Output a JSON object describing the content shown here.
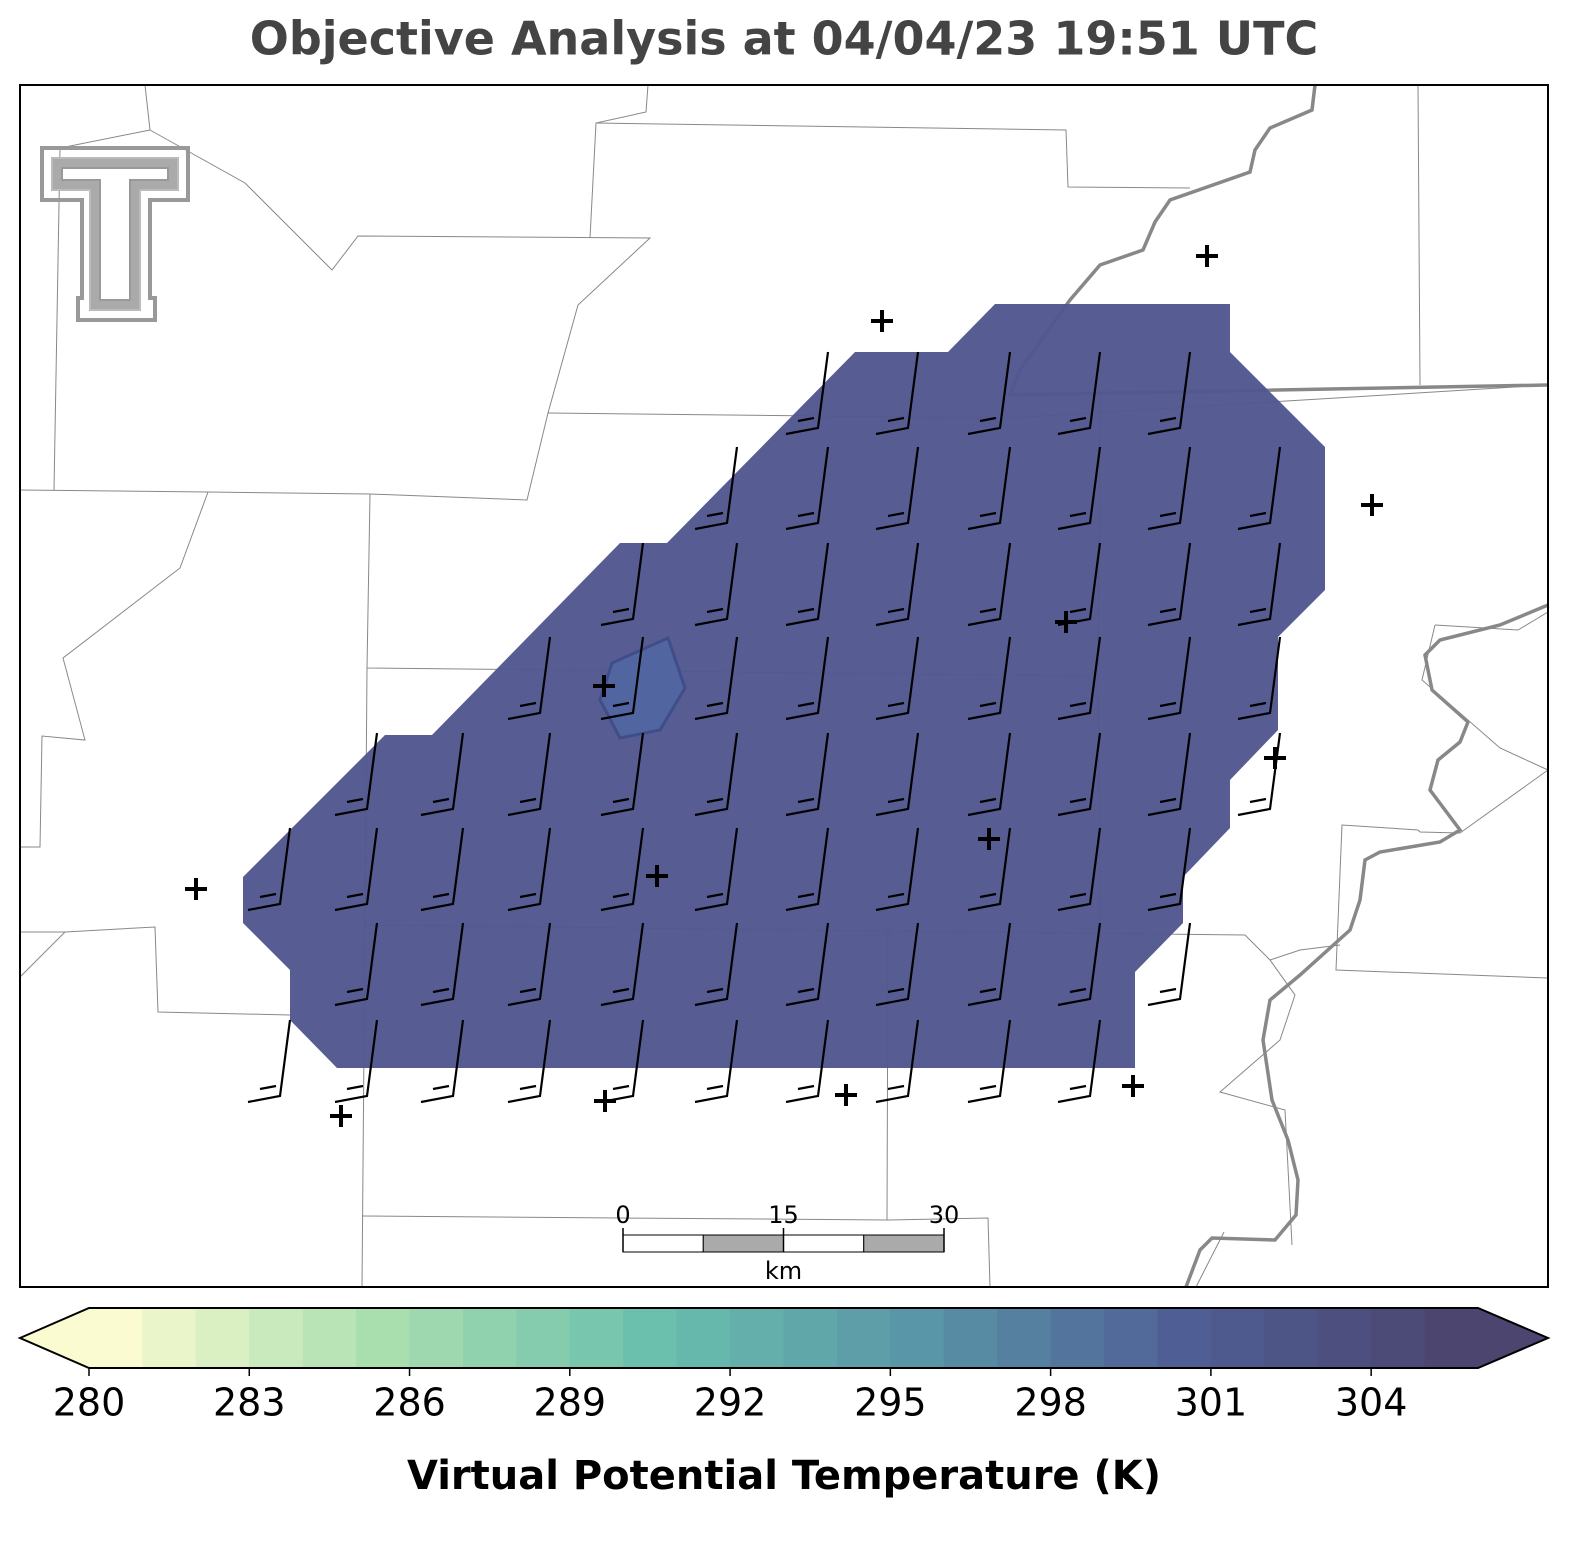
{
  "title": "Objective Analysis at 04/04/23 19:51 UTC",
  "colorbar": {
    "label": "Virtual Potential Temperature (K)",
    "lim": [
      280,
      306
    ],
    "step": 1,
    "ticks": [
      280,
      283,
      286,
      289,
      292,
      295,
      298,
      301,
      304
    ],
    "colors": [
      "#fafbd0",
      "#a9deae",
      "#6bc0ad",
      "#5996a8",
      "#4f5f95",
      "#4b4570"
    ]
  },
  "field": {
    "color": "#52588f"
  },
  "scale_bar": {
    "ticks": [
      0,
      15,
      30
    ],
    "unit": "km"
  }
}
